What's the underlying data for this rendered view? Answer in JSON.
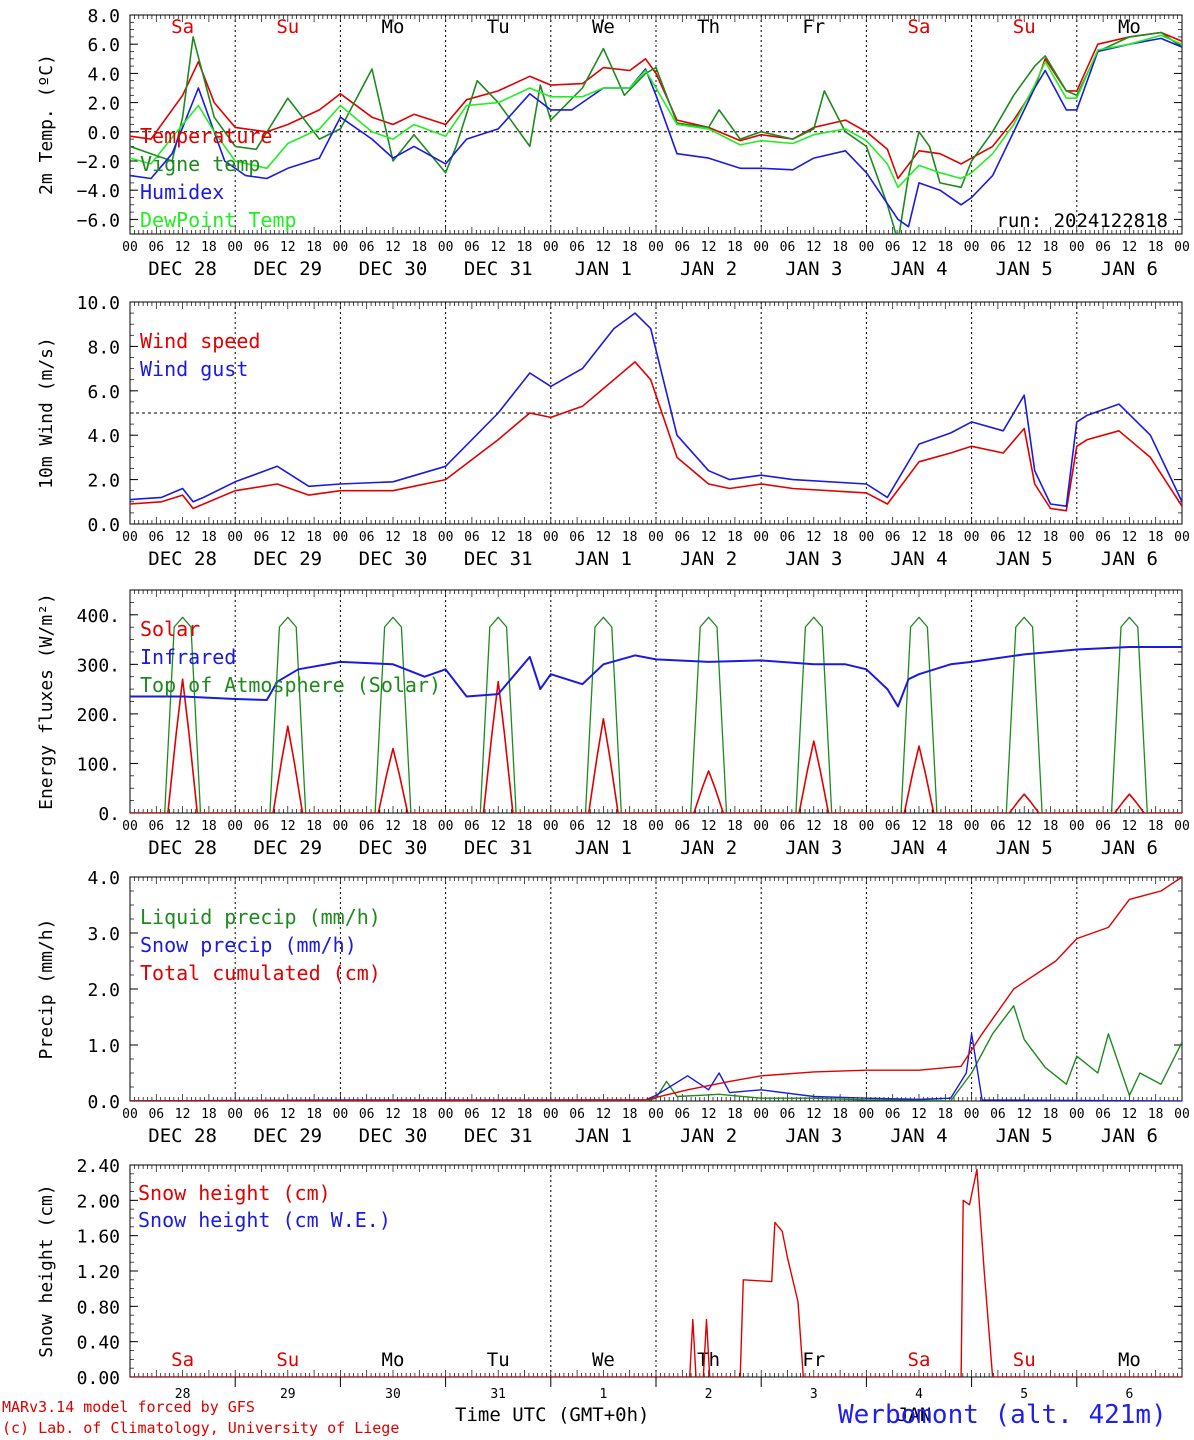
{
  "colors": {
    "red": "#e00000",
    "green": "#1e8a1e",
    "blue": "#1a1ae0",
    "lightgreen": "#22ee22",
    "dark": "#000000"
  },
  "days": {
    "weekdays": [
      "Sa",
      "Su",
      "Mo",
      "Tu",
      "We",
      "Th",
      "Fr",
      "Sa",
      "Su",
      "Mo"
    ],
    "weekday_colors": [
      "red",
      "red",
      "black",
      "black",
      "black",
      "black",
      "black",
      "red",
      "red",
      "black"
    ],
    "date_labels": [
      "DEC 28",
      "DEC 29",
      "DEC 30",
      "DEC 31",
      "JAN  1",
      "JAN  2",
      "JAN  3",
      "JAN  4",
      "JAN  5",
      "JAN  6"
    ],
    "hour_labels": [
      "00",
      "06",
      "12",
      "18"
    ],
    "final_hour_label": "00",
    "day_numbers": [
      "28",
      "29",
      "30",
      "31",
      "1",
      "2",
      "3",
      "4",
      "5",
      "6"
    ]
  },
  "footer": {
    "model": "MARv3.14 model forced by GFS",
    "lab": "(c) Lab. of Climatology, University of Liege",
    "axis_title": "Time UTC (GMT+0h)",
    "month": "JAN",
    "station": "Werbomont (alt. 421m)"
  },
  "chart_data": [
    {
      "id": "temp",
      "type": "line",
      "ylabel": "2m Temp. (ºC)",
      "ylim": [
        -7,
        8
      ],
      "yticks": [
        "8.0",
        "6.0",
        "4.0",
        "2.0",
        "0.0",
        "−2.0",
        "−4.0",
        "−6.0"
      ],
      "ytick_values": [
        8,
        6,
        4,
        2,
        0,
        -2,
        -4,
        -6
      ],
      "ref_line": 0,
      "annotation": "run: 2024122818",
      "series": [
        {
          "name": "Temperature",
          "color": "red",
          "x": [
            0,
            0.2,
            0.5,
            0.65,
            0.8,
            1.0,
            1.3,
            1.5,
            1.8,
            2.0,
            2.3,
            2.5,
            2.7,
            3.0,
            3.2,
            3.5,
            3.8,
            4.0,
            4.3,
            4.5,
            4.75,
            4.9,
            5.0,
            5.2,
            5.5,
            5.8,
            6.0,
            6.3,
            6.5,
            6.8,
            7.0,
            7.2,
            7.3,
            7.5,
            7.7,
            7.9,
            8.0,
            8.2,
            8.4,
            8.6,
            8.7,
            8.9,
            9.0,
            9.2,
            9.5,
            9.8,
            10.0
          ],
          "y": [
            -0.3,
            -0.5,
            2.5,
            4.8,
            2.0,
            0.3,
            0.0,
            0.5,
            1.5,
            2.6,
            1.0,
            0.5,
            1.2,
            0.5,
            2.2,
            2.8,
            3.8,
            3.2,
            3.3,
            4.4,
            4.2,
            5.0,
            4.0,
            0.8,
            0.3,
            -0.6,
            -0.2,
            -0.5,
            0.3,
            0.8,
            0.0,
            -1.2,
            -3.2,
            -1.3,
            -1.5,
            -2.2,
            -1.8,
            -1.0,
            0.8,
            3.0,
            5.0,
            2.8,
            2.8,
            6.0,
            6.5,
            6.8,
            6.2
          ]
        },
        {
          "name": "Vigne temp",
          "color": "green",
          "x": [
            0,
            0.2,
            0.4,
            0.5,
            0.6,
            0.8,
            1.0,
            1.2,
            1.5,
            1.8,
            2.0,
            2.3,
            2.5,
            2.7,
            3.0,
            3.1,
            3.3,
            3.5,
            3.8,
            3.9,
            4.0,
            4.3,
            4.5,
            4.7,
            4.9,
            5.0,
            5.2,
            5.5,
            5.6,
            5.8,
            6.0,
            6.3,
            6.5,
            6.6,
            6.8,
            7.0,
            7.2,
            7.3,
            7.4,
            7.5,
            7.6,
            7.7,
            7.9,
            8.0,
            8.2,
            8.4,
            8.6,
            8.7,
            8.9,
            9.0,
            9.2,
            9.5,
            9.8,
            10.0
          ],
          "y": [
            -1.0,
            -1.5,
            -2.0,
            1.0,
            6.5,
            1.0,
            -1.0,
            -1.2,
            2.3,
            -0.5,
            0.2,
            4.3,
            -2.0,
            -0.2,
            -2.8,
            -1.0,
            3.5,
            2.0,
            -1.0,
            3.2,
            0.8,
            3.0,
            5.7,
            2.5,
            4.0,
            4.4,
            0.6,
            0.3,
            1.5,
            -0.5,
            0.0,
            -0.5,
            0.2,
            2.8,
            0.0,
            -1.0,
            -5.0,
            -7.5,
            -3.0,
            0.0,
            -1.0,
            -3.5,
            -3.8,
            -2.0,
            0.0,
            2.5,
            4.5,
            5.2,
            2.8,
            2.5,
            5.5,
            6.5,
            6.8,
            5.8
          ]
        },
        {
          "name": "Humidex",
          "color": "blue",
          "x": [
            0,
            0.2,
            0.4,
            0.65,
            0.9,
            1.1,
            1.3,
            1.5,
            1.8,
            2.0,
            2.3,
            2.5,
            2.7,
            3.0,
            3.2,
            3.5,
            3.8,
            4.0,
            4.2,
            4.5,
            4.75,
            4.9,
            5.0,
            5.2,
            5.5,
            5.8,
            6.0,
            6.3,
            6.5,
            6.8,
            7.0,
            7.3,
            7.4,
            7.5,
            7.7,
            7.9,
            8.0,
            8.2,
            8.4,
            8.6,
            8.7,
            8.9,
            9.0,
            9.2,
            9.5,
            9.8,
            10.0
          ],
          "y": [
            -3.0,
            -3.2,
            -1.5,
            3.0,
            -2.0,
            -3.0,
            -3.2,
            -2.5,
            -1.8,
            1.0,
            -0.5,
            -1.8,
            -1.0,
            -2.2,
            -0.5,
            0.2,
            2.6,
            1.5,
            1.5,
            3.0,
            3.0,
            4.3,
            2.5,
            -1.5,
            -1.8,
            -2.5,
            -2.5,
            -2.6,
            -1.8,
            -1.3,
            -2.8,
            -6.0,
            -6.5,
            -3.5,
            -4.0,
            -5.0,
            -4.5,
            -3.0,
            0.0,
            3.0,
            4.2,
            1.5,
            1.5,
            5.5,
            6.0,
            6.4,
            5.8
          ]
        },
        {
          "name": "DewPoint Temp",
          "color": "lightgreen",
          "x": [
            0,
            0.2,
            0.5,
            0.65,
            0.8,
            1.0,
            1.3,
            1.5,
            1.8,
            2.0,
            2.3,
            2.5,
            2.7,
            3.0,
            3.2,
            3.5,
            3.8,
            4.0,
            4.3,
            4.5,
            4.75,
            4.9,
            5.0,
            5.2,
            5.5,
            5.8,
            6.0,
            6.3,
            6.5,
            6.8,
            7.0,
            7.2,
            7.3,
            7.5,
            7.7,
            7.9,
            8.0,
            8.2,
            8.4,
            8.6,
            8.7,
            8.9,
            9.0,
            9.2,
            9.5,
            9.8,
            10.0
          ],
          "y": [
            -1.8,
            -2.2,
            0.5,
            1.8,
            0.0,
            -2.0,
            -2.5,
            -0.8,
            0.2,
            1.8,
            0.0,
            -0.5,
            0.5,
            -0.3,
            1.8,
            2.0,
            3.0,
            2.4,
            2.4,
            3.0,
            3.0,
            4.2,
            3.0,
            0.5,
            0.2,
            -0.9,
            -0.6,
            -0.8,
            -0.2,
            0.2,
            -0.6,
            -2.2,
            -3.8,
            -2.3,
            -2.8,
            -3.2,
            -2.8,
            -1.5,
            0.5,
            3.2,
            4.8,
            2.3,
            2.3,
            5.6,
            6.0,
            6.6,
            6.0
          ]
        }
      ]
    },
    {
      "id": "wind",
      "type": "line",
      "ylabel": "10m Wind (m/s)",
      "ylim": [
        0,
        10
      ],
      "yticks": [
        "10.0",
        "8.0",
        "6.0",
        "4.0",
        "2.0",
        "0.0"
      ],
      "ytick_values": [
        10,
        8,
        6,
        4,
        2,
        0
      ],
      "ref_line": 5,
      "series": [
        {
          "name": "Wind speed",
          "color": "red",
          "x": [
            0,
            0.3,
            0.5,
            0.6,
            0.7,
            1.0,
            1.4,
            1.7,
            2.0,
            2.5,
            3.0,
            3.5,
            3.8,
            4.0,
            4.3,
            4.6,
            4.8,
            4.95,
            5.2,
            5.5,
            5.7,
            6.0,
            6.3,
            7.0,
            7.2,
            7.5,
            7.8,
            8.0,
            8.3,
            8.5,
            8.6,
            8.75,
            8.9,
            9.0,
            9.1,
            9.4,
            9.7,
            10.0
          ],
          "y": [
            0.9,
            1.0,
            1.3,
            0.7,
            0.9,
            1.5,
            1.8,
            1.3,
            1.5,
            1.5,
            2.0,
            3.8,
            5.0,
            4.8,
            5.3,
            6.5,
            7.3,
            6.5,
            3.0,
            1.8,
            1.6,
            1.8,
            1.6,
            1.4,
            0.9,
            2.8,
            3.2,
            3.5,
            3.2,
            4.3,
            1.8,
            0.7,
            0.6,
            3.5,
            3.8,
            4.2,
            3.0,
            0.8
          ]
        },
        {
          "name": "Wind gust",
          "color": "blue",
          "x": [
            0,
            0.3,
            0.5,
            0.6,
            0.7,
            1.0,
            1.4,
            1.7,
            2.0,
            2.5,
            3.0,
            3.5,
            3.8,
            4.0,
            4.3,
            4.6,
            4.8,
            4.95,
            5.2,
            5.5,
            5.7,
            6.0,
            6.3,
            7.0,
            7.2,
            7.5,
            7.8,
            8.0,
            8.3,
            8.5,
            8.6,
            8.75,
            8.9,
            9.0,
            9.1,
            9.4,
            9.7,
            10.0
          ],
          "y": [
            1.1,
            1.2,
            1.6,
            1.0,
            1.2,
            1.9,
            2.6,
            1.7,
            1.8,
            1.9,
            2.6,
            5.0,
            6.8,
            6.2,
            7.0,
            8.8,
            9.5,
            8.8,
            4.0,
            2.4,
            2.0,
            2.2,
            2.0,
            1.8,
            1.2,
            3.6,
            4.1,
            4.6,
            4.2,
            5.8,
            2.4,
            0.9,
            0.8,
            4.6,
            4.9,
            5.4,
            4.0,
            1.0
          ]
        }
      ]
    },
    {
      "id": "energy",
      "type": "line",
      "ylabel": "Energy fluxes (W/m²)",
      "ylim": [
        0,
        450
      ],
      "yticks": [
        "400.",
        "300.",
        "200.",
        "100.",
        "0."
      ],
      "ytick_values": [
        400,
        300,
        200,
        100,
        0
      ],
      "solar_peaks": [
        270,
        175,
        130,
        265,
        190,
        85,
        145,
        135,
        38,
        38
      ],
      "toa_peak": 395,
      "series": [
        {
          "name": "Solar",
          "color": "red"
        },
        {
          "name": "Infrared",
          "color": "blue",
          "x": [
            0,
            0.5,
            1.0,
            1.3,
            1.4,
            1.6,
            2.0,
            2.5,
            2.8,
            3.0,
            3.2,
            3.5,
            3.8,
            3.9,
            4.0,
            4.3,
            4.5,
            4.8,
            5.0,
            5.5,
            6.0,
            6.5,
            6.8,
            7.0,
            7.2,
            7.3,
            7.4,
            7.5,
            7.8,
            8.0,
            8.5,
            9.0,
            9.5,
            10.0
          ],
          "y": [
            235,
            235,
            230,
            228,
            265,
            290,
            305,
            300,
            275,
            290,
            235,
            240,
            315,
            250,
            280,
            260,
            300,
            318,
            310,
            305,
            308,
            300,
            300,
            290,
            250,
            215,
            270,
            280,
            300,
            305,
            320,
            330,
            335,
            335
          ]
        },
        {
          "name": "Top of Atmosphere (Solar)",
          "color": "green"
        }
      ]
    },
    {
      "id": "precip",
      "type": "line",
      "ylabel": "Precip (mm/h)",
      "ylim": [
        0,
        4
      ],
      "yticks": [
        "4.0",
        "3.0",
        "2.0",
        "1.0",
        "0.0"
      ],
      "ytick_values": [
        4,
        3,
        2,
        1,
        0
      ],
      "series": [
        {
          "name": "Liquid precip (mm/h)",
          "color": "green",
          "x": [
            0,
            4.9,
            5.0,
            5.1,
            5.2,
            5.4,
            5.6,
            6.0,
            6.5,
            7.0,
            7.5,
            7.8,
            8.0,
            8.2,
            8.4,
            8.5,
            8.7,
            8.9,
            9.0,
            9.2,
            9.3,
            9.5,
            9.6,
            9.8,
            10.0
          ],
          "y": [
            0,
            0,
            0.05,
            0.35,
            0.08,
            0.1,
            0.12,
            0.05,
            0.05,
            0.02,
            0.02,
            0.0,
            0.5,
            1.2,
            1.7,
            1.1,
            0.6,
            0.3,
            0.8,
            0.5,
            1.2,
            0.1,
            0.5,
            0.3,
            1.05
          ]
        },
        {
          "name": "Snow precip (mm/h)",
          "color": "blue",
          "x": [
            0,
            2.0,
            4.9,
            5.0,
            5.3,
            5.5,
            5.6,
            5.7,
            6.0,
            6.5,
            7.0,
            7.5,
            7.8,
            7.95,
            8.0,
            8.1,
            10.0
          ],
          "y": [
            0,
            0.02,
            0.02,
            0.1,
            0.45,
            0.2,
            0.5,
            0.15,
            0.2,
            0.08,
            0.05,
            0.03,
            0.05,
            0.5,
            1.2,
            0.02,
            0
          ]
        },
        {
          "name": "Total cumulated (cm)",
          "color": "red",
          "x": [
            0,
            4.9,
            5.3,
            5.7,
            6.0,
            6.5,
            7.0,
            7.5,
            7.9,
            8.1,
            8.4,
            8.8,
            9.0,
            9.3,
            9.5,
            9.8,
            10.0
          ],
          "y": [
            0,
            0.02,
            0.2,
            0.35,
            0.45,
            0.52,
            0.55,
            0.55,
            0.62,
            1.2,
            2.0,
            2.5,
            2.9,
            3.1,
            3.6,
            3.75,
            4.0
          ]
        }
      ]
    },
    {
      "id": "snow",
      "type": "line",
      "ylabel": "Snow height (cm)",
      "ylim": [
        0,
        2.4
      ],
      "yticks": [
        "2.40",
        "2.00",
        "1.60",
        "1.20",
        "0.80",
        "0.40",
        "0.00"
      ],
      "ytick_values": [
        2.4,
        2.0,
        1.6,
        1.2,
        0.8,
        0.4,
        0.0
      ],
      "series": [
        {
          "name": "Snow height (cm)",
          "color": "red",
          "x": [
            0,
            5.32,
            5.35,
            5.38,
            5.45,
            5.48,
            5.51,
            5.8,
            5.83,
            6.1,
            6.13,
            6.2,
            6.25,
            6.35,
            6.4,
            6.4,
            7.9,
            7.92,
            7.98,
            8.05,
            8.12,
            8.2,
            8.2,
            10.0
          ],
          "y": [
            0,
            0,
            0.65,
            0,
            0,
            0.65,
            0,
            0,
            1.1,
            1.08,
            1.75,
            1.65,
            1.35,
            0.85,
            0,
            0,
            0,
            2.0,
            1.95,
            2.35,
            1.2,
            0,
            0,
            0
          ]
        },
        {
          "name": "Snow height (cm W.E.)",
          "color": "blue",
          "x": [],
          "y": []
        }
      ]
    }
  ]
}
